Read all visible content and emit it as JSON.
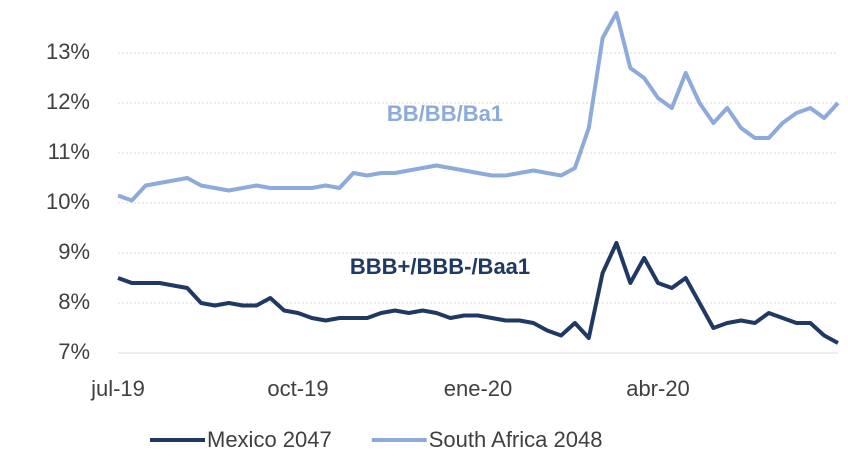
{
  "chart_data": {
    "type": "line",
    "categories": [
      "jul-19",
      null,
      null,
      null,
      null,
      null,
      null,
      null,
      null,
      null,
      null,
      null,
      null,
      "oct-19",
      null,
      null,
      null,
      null,
      null,
      null,
      null,
      null,
      null,
      null,
      null,
      null,
      "ene-20",
      null,
      null,
      null,
      null,
      null,
      null,
      null,
      null,
      null,
      null,
      null,
      null,
      "abr-20",
      null,
      null,
      null,
      null,
      null,
      null,
      null,
      null,
      null,
      null,
      null,
      null,
      null
    ],
    "series": [
      {
        "name": "Mexico 2047",
        "color": "#1f3864",
        "values": [
          8.5,
          8.4,
          8.4,
          8.4,
          8.35,
          8.3,
          8.0,
          7.95,
          8.0,
          7.95,
          7.95,
          8.1,
          7.85,
          7.8,
          7.7,
          7.65,
          7.7,
          7.7,
          7.7,
          7.8,
          7.85,
          7.8,
          7.85,
          7.8,
          7.7,
          7.75,
          7.75,
          7.7,
          7.65,
          7.65,
          7.6,
          7.45,
          7.35,
          7.6,
          7.3,
          8.6,
          9.2,
          8.4,
          8.9,
          8.4,
          8.3,
          8.5,
          8.0,
          7.5,
          7.6,
          7.65,
          7.6,
          7.8,
          7.7,
          7.6,
          7.6,
          7.35,
          7.2
        ]
      },
      {
        "name": "South Africa 2048",
        "color": "#8eaadb",
        "values": [
          10.15,
          10.05,
          10.35,
          10.4,
          10.45,
          10.5,
          10.35,
          10.3,
          10.25,
          10.3,
          10.35,
          10.3,
          10.3,
          10.3,
          10.3,
          10.35,
          10.3,
          10.6,
          10.55,
          10.6,
          10.6,
          10.65,
          10.7,
          10.75,
          10.7,
          10.65,
          10.6,
          10.55,
          10.55,
          10.6,
          10.65,
          10.6,
          10.55,
          10.7,
          11.5,
          13.3,
          13.8,
          12.7,
          12.5,
          12.1,
          11.9,
          12.6,
          12.0,
          11.6,
          11.9,
          11.5,
          11.3,
          11.3,
          11.6,
          11.8,
          11.9,
          11.7,
          12.0
        ]
      }
    ],
    "annotations": [
      "BB/BB/Ba1",
      "BBB+/BBB-/Baa1"
    ],
    "ylim": [
      7,
      13.9
    ],
    "yticks": [
      {
        "value": 7,
        "label": "7%"
      },
      {
        "value": 8,
        "label": "8%"
      },
      {
        "value": 9,
        "label": "9%"
      },
      {
        "value": 10,
        "label": "10%"
      },
      {
        "value": 11,
        "label": "11%"
      },
      {
        "value": 12,
        "label": "12%"
      },
      {
        "value": 13,
        "label": "13%"
      }
    ],
    "grid": true,
    "legend": "bottom"
  }
}
